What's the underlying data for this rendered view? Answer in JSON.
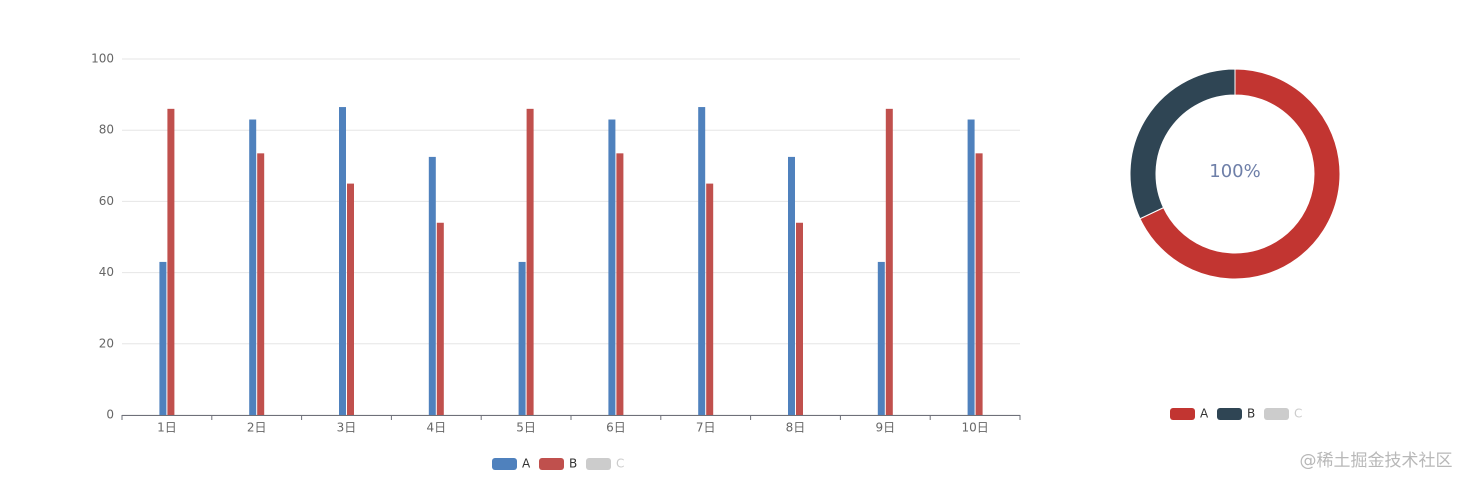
{
  "chart_data": [
    {
      "type": "bar",
      "categories": [
        "1日",
        "2日",
        "3日",
        "4日",
        "5日",
        "6日",
        "7日",
        "8日",
        "9日",
        "10日"
      ],
      "series": [
        {
          "name": "A",
          "color": "#4f81bd",
          "values": [
            43,
            83,
            86.5,
            72.5,
            43,
            83,
            86.5,
            72.5,
            43,
            83
          ]
        },
        {
          "name": "B",
          "color": "#c0504d",
          "values": [
            86,
            73.5,
            65,
            54,
            86,
            73.5,
            65,
            54,
            86,
            73.5
          ]
        }
      ],
      "inactive_legend": [
        {
          "name": "C",
          "color": "#cccccc"
        }
      ],
      "ylim": [
        0,
        100
      ],
      "yticks": [
        0,
        20,
        40,
        60,
        80,
        100
      ],
      "grid": true
    },
    {
      "type": "pie",
      "categories": [
        "A",
        "B"
      ],
      "values": [
        68,
        32
      ],
      "colors": [
        "#c23531",
        "#2f4554"
      ],
      "center_label": "100%",
      "inactive_legend": [
        {
          "name": "C",
          "color": "#cccccc"
        }
      ]
    }
  ],
  "watermark": "@稀土掘金技术社区"
}
